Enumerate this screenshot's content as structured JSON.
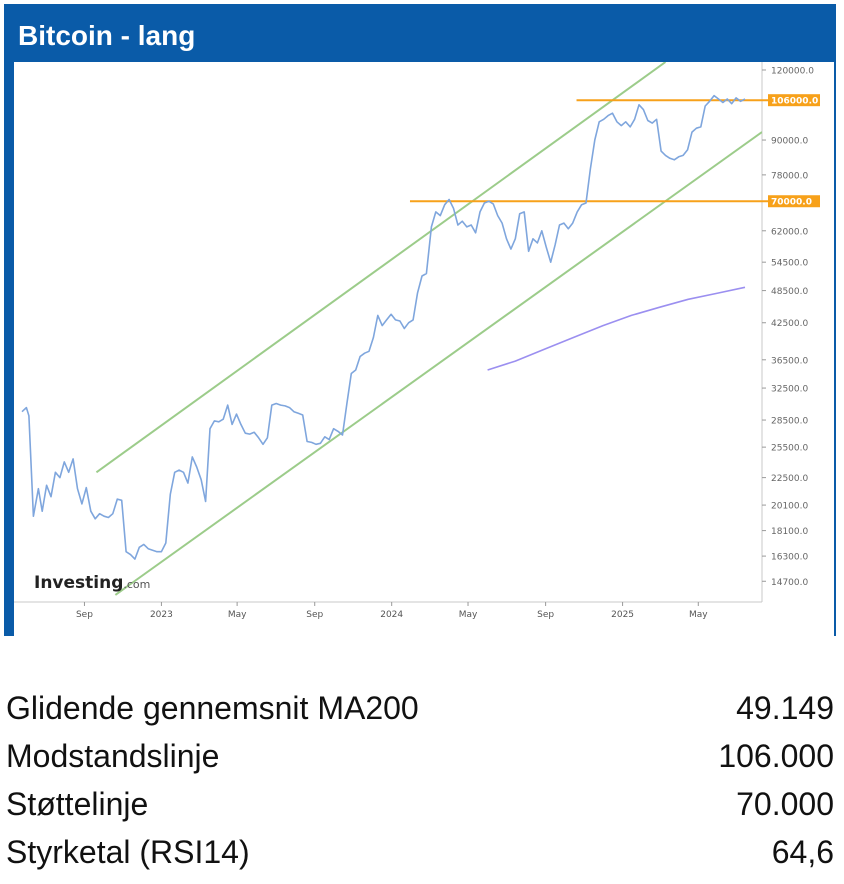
{
  "header": {
    "title": "Bitcoin - lang"
  },
  "chart_data": {
    "type": "line",
    "title": "Bitcoin - lang",
    "brand": "Investing.com",
    "y_scale": "log",
    "ylim": [
      13500,
      124000
    ],
    "y_ticks": [
      {
        "value": 120000,
        "label": "120000.0"
      },
      {
        "value": 90000,
        "label": "90000.0"
      },
      {
        "value": 78000,
        "label": "78000.0"
      },
      {
        "value": 70000,
        "label": "70000.0"
      },
      {
        "value": 62000,
        "label": "62000.0"
      },
      {
        "value": 54500,
        "label": "54500.0"
      },
      {
        "value": 48500,
        "label": "48500.0"
      },
      {
        "value": 42500,
        "label": "42500.0"
      },
      {
        "value": 36500,
        "label": "36500.0"
      },
      {
        "value": 32500,
        "label": "32500.0"
      },
      {
        "value": 28500,
        "label": "28500.0"
      },
      {
        "value": 25500,
        "label": "25500.0"
      },
      {
        "value": 22500,
        "label": "22500.0"
      },
      {
        "value": 20100,
        "label": "20100.0"
      },
      {
        "value": 18100,
        "label": "18100.0"
      },
      {
        "value": 16300,
        "label": "16300.0"
      },
      {
        "value": 14700,
        "label": "14700.0"
      }
    ],
    "x_ticks": [
      {
        "date": "2022-09-01",
        "label": "Sep"
      },
      {
        "date": "2023-01-01",
        "label": "2023"
      },
      {
        "date": "2023-05-01",
        "label": "May"
      },
      {
        "date": "2023-09-01",
        "label": "Sep"
      },
      {
        "date": "2024-01-01",
        "label": "2024"
      },
      {
        "date": "2024-05-01",
        "label": "May"
      },
      {
        "date": "2024-09-01",
        "label": "Sep"
      },
      {
        "date": "2025-01-01",
        "label": "2025"
      },
      {
        "date": "2025-05-01",
        "label": "May"
      }
    ],
    "xlim": [
      "2022-05-25",
      "2025-08-10"
    ],
    "series": [
      {
        "color": "#7fa6dd",
        "points": [
          [
            "2022-05-25",
            29500
          ],
          [
            "2022-06-01",
            30000
          ],
          [
            "2022-06-05",
            29000
          ],
          [
            "2022-06-12",
            19200
          ],
          [
            "2022-06-20",
            21500
          ],
          [
            "2022-06-26",
            19600
          ],
          [
            "2022-07-03",
            21800
          ],
          [
            "2022-07-10",
            20800
          ],
          [
            "2022-07-17",
            23000
          ],
          [
            "2022-07-24",
            22500
          ],
          [
            "2022-07-31",
            24000
          ],
          [
            "2022-08-07",
            23000
          ],
          [
            "2022-08-14",
            24300
          ],
          [
            "2022-08-21",
            21500
          ],
          [
            "2022-08-28",
            20200
          ],
          [
            "2022-09-04",
            21600
          ],
          [
            "2022-09-11",
            19600
          ],
          [
            "2022-09-18",
            19000
          ],
          [
            "2022-09-25",
            19400
          ],
          [
            "2022-10-02",
            19200
          ],
          [
            "2022-10-09",
            19100
          ],
          [
            "2022-10-16",
            19400
          ],
          [
            "2022-10-23",
            20600
          ],
          [
            "2022-10-30",
            20500
          ],
          [
            "2022-11-06",
            16600
          ],
          [
            "2022-11-13",
            16400
          ],
          [
            "2022-11-20",
            16100
          ],
          [
            "2022-11-27",
            16900
          ],
          [
            "2022-12-04",
            17100
          ],
          [
            "2022-12-11",
            16800
          ],
          [
            "2022-12-18",
            16700
          ],
          [
            "2022-12-25",
            16600
          ],
          [
            "2023-01-01",
            16600
          ],
          [
            "2023-01-08",
            17200
          ],
          [
            "2023-01-15",
            21000
          ],
          [
            "2023-01-22",
            23000
          ],
          [
            "2023-01-29",
            23200
          ],
          [
            "2023-02-05",
            23000
          ],
          [
            "2023-02-12",
            22000
          ],
          [
            "2023-02-19",
            24500
          ],
          [
            "2023-02-26",
            23500
          ],
          [
            "2023-03-05",
            22300
          ],
          [
            "2023-03-12",
            20400
          ],
          [
            "2023-03-19",
            27500
          ],
          [
            "2023-03-26",
            28400
          ],
          [
            "2023-04-02",
            28300
          ],
          [
            "2023-04-09",
            28600
          ],
          [
            "2023-04-16",
            30300
          ],
          [
            "2023-04-23",
            28000
          ],
          [
            "2023-04-30",
            29200
          ],
          [
            "2023-05-07",
            28000
          ],
          [
            "2023-05-14",
            27000
          ],
          [
            "2023-05-21",
            26900
          ],
          [
            "2023-05-28",
            27100
          ],
          [
            "2023-06-04",
            26500
          ],
          [
            "2023-06-11",
            25800
          ],
          [
            "2023-06-18",
            26500
          ],
          [
            "2023-06-25",
            30300
          ],
          [
            "2023-07-02",
            30500
          ],
          [
            "2023-07-09",
            30300
          ],
          [
            "2023-07-16",
            30200
          ],
          [
            "2023-07-23",
            30000
          ],
          [
            "2023-07-30",
            29500
          ],
          [
            "2023-08-06",
            29300
          ],
          [
            "2023-08-13",
            29100
          ],
          [
            "2023-08-20",
            26100
          ],
          [
            "2023-08-27",
            26000
          ],
          [
            "2023-09-03",
            25800
          ],
          [
            "2023-09-10",
            25900
          ],
          [
            "2023-09-17",
            26600
          ],
          [
            "2023-09-24",
            26300
          ],
          [
            "2023-10-01",
            27500
          ],
          [
            "2023-10-08",
            27200
          ],
          [
            "2023-10-15",
            26800
          ],
          [
            "2023-10-22",
            30500
          ],
          [
            "2023-10-29",
            34500
          ],
          [
            "2023-11-05",
            35000
          ],
          [
            "2023-11-12",
            37000
          ],
          [
            "2023-11-19",
            37500
          ],
          [
            "2023-11-26",
            37800
          ],
          [
            "2023-12-03",
            40000
          ],
          [
            "2023-12-10",
            43800
          ],
          [
            "2023-12-17",
            42000
          ],
          [
            "2023-12-24",
            43000
          ],
          [
            "2023-12-31",
            44000
          ],
          [
            "2024-01-07",
            43000
          ],
          [
            "2024-01-14",
            42800
          ],
          [
            "2024-01-21",
            41500
          ],
          [
            "2024-01-28",
            42500
          ],
          [
            "2024-02-04",
            43000
          ],
          [
            "2024-02-11",
            48000
          ],
          [
            "2024-02-18",
            51500
          ],
          [
            "2024-02-25",
            52000
          ],
          [
            "2024-03-04",
            63000
          ],
          [
            "2024-03-11",
            67000
          ],
          [
            "2024-03-18",
            66000
          ],
          [
            "2024-03-25",
            69000
          ],
          [
            "2024-04-01",
            70500
          ],
          [
            "2024-04-08",
            68000
          ],
          [
            "2024-04-15",
            63500
          ],
          [
            "2024-04-22",
            64500
          ],
          [
            "2024-04-29",
            63000
          ],
          [
            "2024-05-06",
            63500
          ],
          [
            "2024-05-13",
            61500
          ],
          [
            "2024-05-20",
            67000
          ],
          [
            "2024-05-27",
            69500
          ],
          [
            "2024-06-03",
            70000
          ],
          [
            "2024-06-10",
            69200
          ],
          [
            "2024-06-17",
            66000
          ],
          [
            "2024-06-24",
            64000
          ],
          [
            "2024-07-01",
            60000
          ],
          [
            "2024-07-08",
            57500
          ],
          [
            "2024-07-15",
            60000
          ],
          [
            "2024-07-22",
            66500
          ],
          [
            "2024-07-29",
            67000
          ],
          [
            "2024-08-05",
            57000
          ],
          [
            "2024-08-12",
            60000
          ],
          [
            "2024-08-19",
            59000
          ],
          [
            "2024-08-26",
            62000
          ],
          [
            "2024-09-02",
            58000
          ],
          [
            "2024-09-09",
            54500
          ],
          [
            "2024-09-16",
            58500
          ],
          [
            "2024-09-23",
            63500
          ],
          [
            "2024-09-30",
            64000
          ],
          [
            "2024-10-07",
            62500
          ],
          [
            "2024-10-14",
            64000
          ],
          [
            "2024-10-21",
            67000
          ],
          [
            "2024-10-28",
            69000
          ],
          [
            "2024-11-04",
            69500
          ],
          [
            "2024-11-11",
            80000
          ],
          [
            "2024-11-18",
            90000
          ],
          [
            "2024-11-25",
            97000
          ],
          [
            "2024-12-02",
            98000
          ],
          [
            "2024-12-09",
            99500
          ],
          [
            "2024-12-16",
            100500
          ],
          [
            "2024-12-23",
            97000
          ],
          [
            "2024-12-30",
            95500
          ],
          [
            "2025-01-06",
            97000
          ],
          [
            "2025-01-13",
            95000
          ],
          [
            "2025-01-20",
            98000
          ],
          [
            "2025-01-27",
            104000
          ],
          [
            "2025-02-03",
            102000
          ],
          [
            "2025-02-10",
            97500
          ],
          [
            "2025-02-17",
            96500
          ],
          [
            "2025-02-24",
            98000
          ],
          [
            "2025-03-03",
            86000
          ],
          [
            "2025-03-10",
            84500
          ],
          [
            "2025-03-17",
            83500
          ],
          [
            "2025-03-24",
            83000
          ],
          [
            "2025-03-31",
            84000
          ],
          [
            "2025-04-07",
            84500
          ],
          [
            "2025-04-14",
            86500
          ],
          [
            "2025-04-21",
            93000
          ],
          [
            "2025-04-28",
            94500
          ],
          [
            "2025-05-05",
            95000
          ],
          [
            "2025-05-12",
            103500
          ],
          [
            "2025-05-19",
            105500
          ],
          [
            "2025-05-26",
            108000
          ],
          [
            "2025-06-02",
            106500
          ],
          [
            "2025-06-09",
            105000
          ],
          [
            "2025-06-16",
            106500
          ],
          [
            "2025-06-23",
            104500
          ],
          [
            "2025-06-30",
            107000
          ],
          [
            "2025-07-07",
            105500
          ],
          [
            "2025-07-14",
            106500
          ]
        ]
      },
      {
        "color": "#9b8ff0",
        "points": [
          [
            "2024-06-01",
            35000
          ],
          [
            "2024-07-15",
            36300
          ],
          [
            "2024-09-01",
            38200
          ],
          [
            "2024-10-15",
            40000
          ],
          [
            "2024-12-01",
            42000
          ],
          [
            "2025-01-15",
            43800
          ],
          [
            "2025-03-01",
            45300
          ],
          [
            "2025-04-15",
            46800
          ],
          [
            "2025-06-01",
            48000
          ],
          [
            "2025-07-14",
            49149
          ]
        ]
      }
    ],
    "horizontal_lines": [
      {
        "value": 106000,
        "label": "106000.0",
        "color": "#f7a11a",
        "from": "2024-10-20",
        "to": "2025-07-20"
      },
      {
        "value": 70000,
        "label": "70000.0",
        "color": "#f7a11a",
        "from": "2024-01-30",
        "to": "2025-07-20"
      }
    ],
    "trend_lines": [
      {
        "color": "#9ccc8a",
        "from": [
          "2022-09-20",
          23000
        ],
        "to": [
          "2025-03-10",
          124000
        ]
      },
      {
        "color": "#9ccc8a",
        "from": [
          "2022-10-20",
          13900
        ],
        "to": [
          "2025-08-10",
          93000
        ]
      }
    ]
  },
  "stats": [
    {
      "label": "Glidende gennemsnit MA200",
      "value": "49.149"
    },
    {
      "label": "Modstandslinje",
      "value": "106.000"
    },
    {
      "label": "Støttelinje",
      "value": "70.000"
    },
    {
      "label": "Styrketal (RSI14)",
      "value": "64,6"
    }
  ]
}
